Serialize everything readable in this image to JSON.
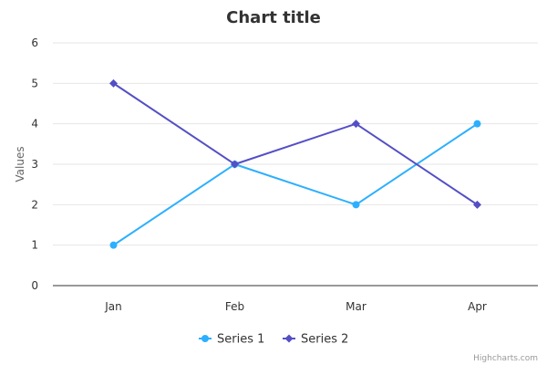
{
  "chart_data": {
    "type": "line",
    "title": "Chart title",
    "xlabel": "",
    "ylabel": "Values",
    "categories": [
      "Jan",
      "Feb",
      "Mar",
      "Apr"
    ],
    "ylim": [
      0,
      6
    ],
    "yticks": [
      0,
      1,
      2,
      3,
      4,
      5,
      6
    ],
    "grid": true,
    "legend_position": "bottom-center",
    "series": [
      {
        "name": "Series 1",
        "values": [
          1,
          3,
          2,
          4
        ],
        "color": "#2caffe",
        "marker": "circle"
      },
      {
        "name": "Series 2",
        "values": [
          5,
          3,
          4,
          2
        ],
        "color": "#544fc5",
        "marker": "diamond"
      }
    ]
  },
  "credits": "Highcharts.com"
}
